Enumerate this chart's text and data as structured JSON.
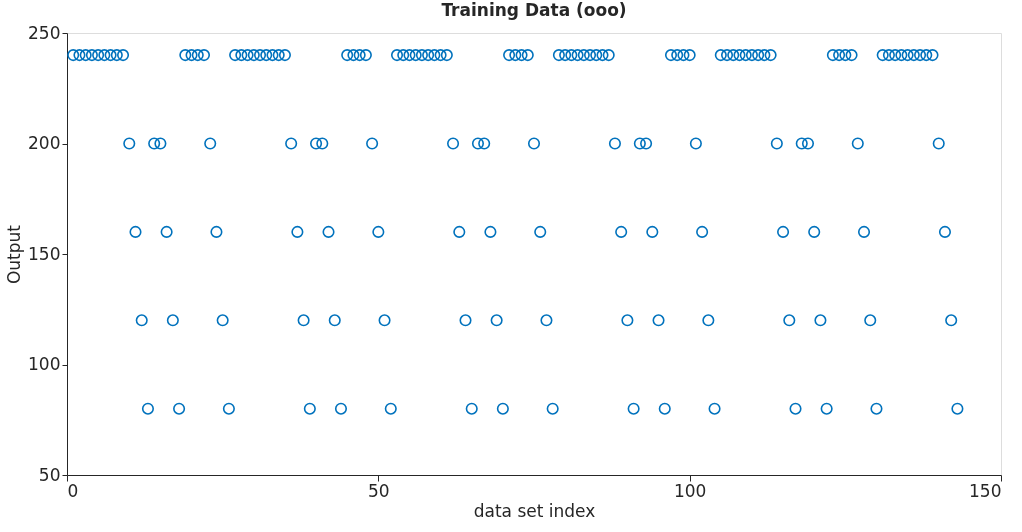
{
  "chart_data": {
    "type": "scatter",
    "title": "Training Data (ooo)",
    "xlabel": "data set index",
    "ylabel": "Output",
    "xlim": [
      0,
      150
    ],
    "xticks": [
      0,
      50,
      100,
      150
    ],
    "ylim": [
      50,
      250
    ],
    "yticks": [
      50,
      100,
      150,
      200,
      250
    ],
    "grid": false,
    "marker": "circle",
    "legend": false,
    "series": [
      {
        "color": "#0072bd",
        "x": [
          1,
          2,
          3,
          4,
          5,
          6,
          7,
          8,
          9,
          10,
          11,
          12,
          13,
          14,
          15,
          16,
          17,
          18,
          19,
          20,
          21,
          22,
          23,
          24,
          25,
          26,
          27,
          28,
          29,
          30,
          31,
          32,
          33,
          34,
          35,
          36,
          37,
          38,
          39,
          40,
          41,
          42,
          43,
          44,
          45,
          46,
          47,
          48,
          49,
          50,
          51,
          52,
          53,
          54,
          55,
          56,
          57,
          58,
          59,
          60,
          61,
          62,
          63,
          64,
          65,
          66,
          67,
          68,
          69,
          70,
          71,
          72,
          73,
          74,
          75,
          76,
          77,
          78,
          79,
          80,
          81,
          82,
          83,
          84,
          85,
          86,
          87,
          88,
          89,
          90,
          91,
          92,
          93,
          94,
          95,
          96,
          97,
          98,
          99,
          100,
          101,
          102,
          103,
          104,
          105,
          106,
          107,
          108,
          109,
          110,
          111,
          112,
          113,
          114,
          115,
          116,
          117,
          118,
          119,
          120,
          121,
          122,
          123,
          124,
          125,
          126,
          127,
          128,
          129,
          130,
          131,
          132,
          133,
          134,
          135,
          136,
          137,
          138,
          139,
          140,
          141,
          142,
          143
        ],
        "values": [
          240,
          240,
          240,
          240,
          240,
          240,
          240,
          240,
          240,
          200,
          160,
          120,
          80,
          200,
          200,
          160,
          120,
          80,
          240,
          240,
          240,
          240,
          200,
          160,
          120,
          80,
          240,
          240,
          240,
          240,
          240,
          240,
          240,
          240,
          240,
          200,
          160,
          120,
          80,
          200,
          200,
          160,
          120,
          80,
          240,
          240,
          240,
          240,
          200,
          160,
          120,
          80,
          240,
          240,
          240,
          240,
          240,
          240,
          240,
          240,
          240,
          200,
          160,
          120,
          80,
          200,
          200,
          160,
          120,
          80,
          240,
          240,
          240,
          240,
          200,
          160,
          120,
          80,
          240,
          240,
          240,
          240,
          240,
          240,
          240,
          240,
          240,
          200,
          160,
          120,
          80,
          200,
          200,
          160,
          120,
          80,
          240,
          240,
          240,
          240,
          200,
          160,
          120,
          80,
          240,
          240,
          240,
          240,
          240,
          240,
          240,
          240,
          240,
          200,
          160,
          120,
          80,
          200,
          200,
          160,
          120,
          80,
          240,
          240,
          240,
          240,
          200,
          160,
          120,
          80,
          240,
          240,
          240,
          240,
          240,
          240,
          240,
          240,
          240,
          200,
          160,
          120,
          80
        ]
      }
    ]
  }
}
